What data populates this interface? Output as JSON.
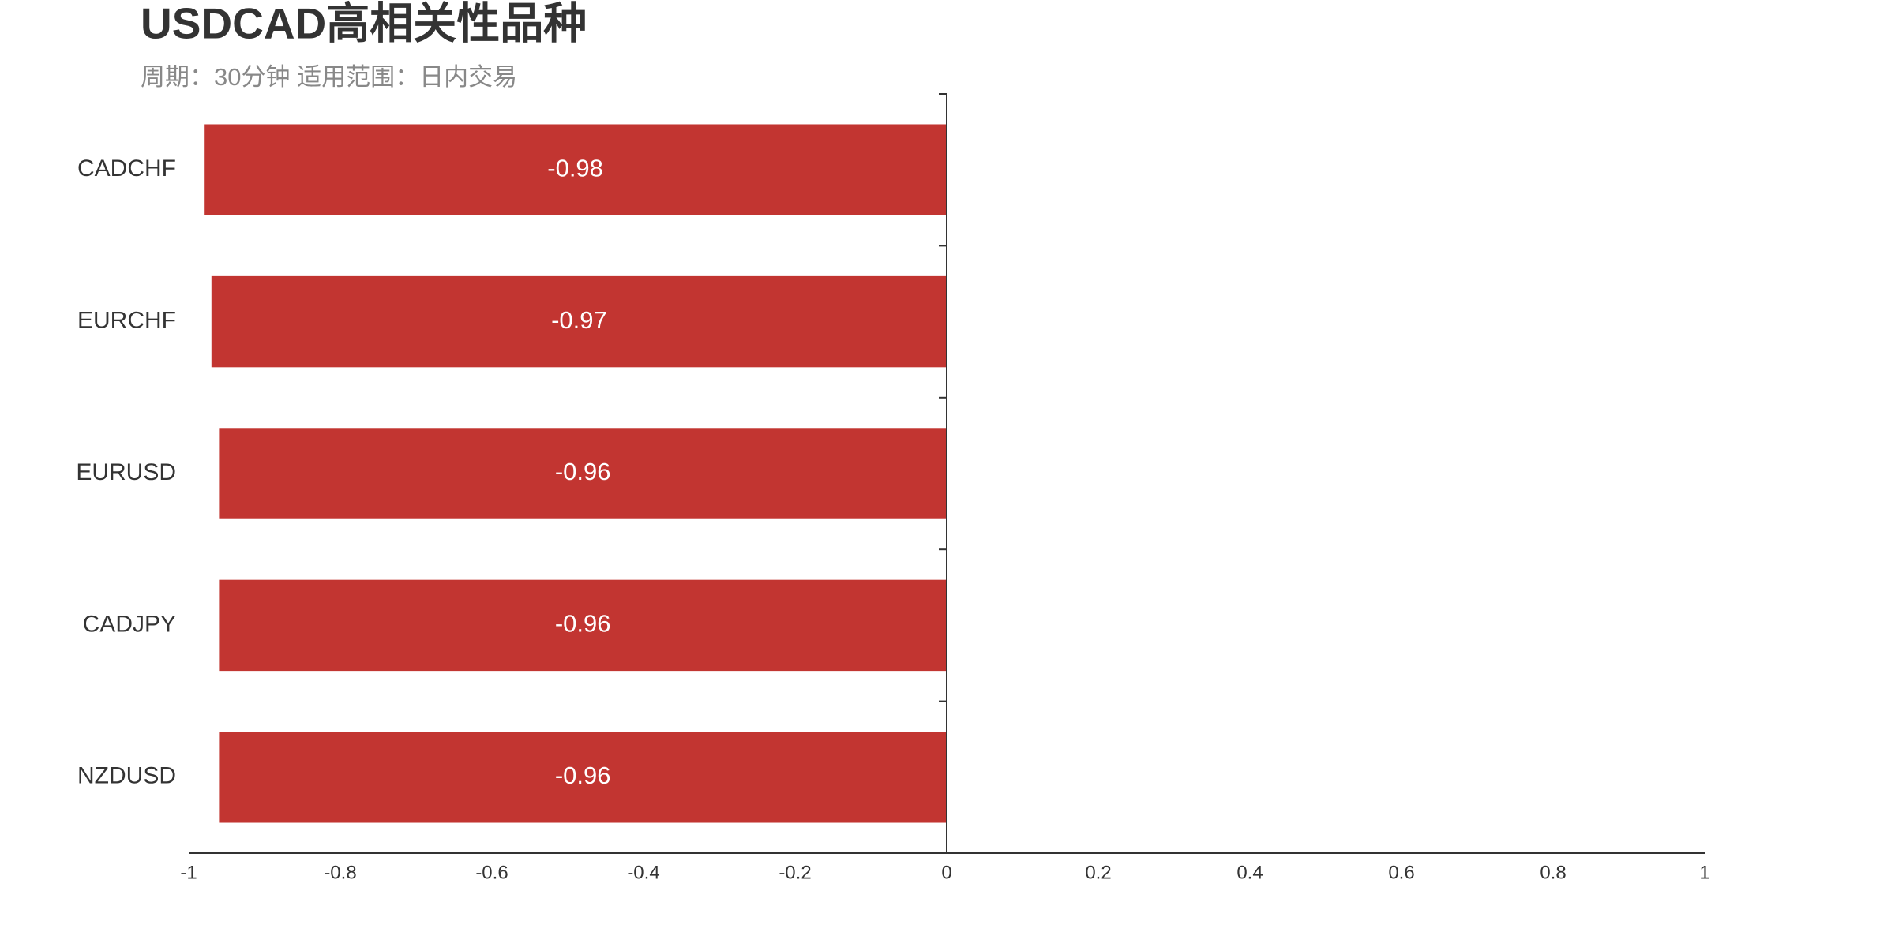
{
  "chart_data": {
    "type": "bar",
    "orientation": "horizontal",
    "title": "USDCAD高相关性品种",
    "subtitle": "周期：30分钟 适用范围：日内交易",
    "categories": [
      "CADCHF",
      "EURCHF",
      "EURUSD",
      "CADJPY",
      "NZDUSD"
    ],
    "values": [
      -0.98,
      -0.97,
      -0.96,
      -0.96,
      -0.96
    ],
    "color": "#c23531",
    "xlim": [
      -1,
      1
    ],
    "xticks": [
      -1,
      -0.8,
      -0.6,
      -0.4,
      -0.2,
      0,
      0.2,
      0.4,
      0.6,
      0.8,
      1
    ],
    "grid": false
  }
}
